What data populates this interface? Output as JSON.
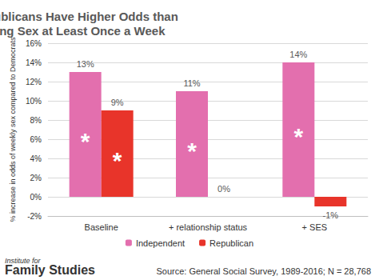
{
  "chart_data": {
    "type": "bar",
    "title": "Independents & Republicans Have Higher Odds than Democrats of Having Sex at Least Once a Week",
    "y_label": "% increase in odds of weekly sex compared to Democrats",
    "categories": [
      "Baseline",
      "+ relationship status",
      "+ SES"
    ],
    "series": [
      {
        "name": "Independent",
        "color": "#e36fae",
        "values": [
          13,
          11,
          14
        ],
        "value_labels": [
          "13%",
          "11%",
          "14%"
        ]
      },
      {
        "name": "Republican",
        "color": "#e8342a",
        "values": [
          9,
          0,
          -1
        ],
        "value_labels": [
          "9%",
          "0%",
          "-1%"
        ]
      }
    ],
    "ylim": [
      -2,
      16
    ],
    "yticks": [
      {
        "value": -2,
        "label": "-2%"
      },
      {
        "value": 0,
        "label": "0%"
      },
      {
        "value": 2,
        "label": "2%"
      },
      {
        "value": 4,
        "label": "4%"
      },
      {
        "value": 6,
        "label": "6%"
      },
      {
        "value": 8,
        "label": "8%"
      },
      {
        "value": 10,
        "label": "10%"
      },
      {
        "value": 12,
        "label": "12%"
      },
      {
        "value": 14,
        "label": "14%"
      },
      {
        "value": 16,
        "label": "16%"
      }
    ],
    "grid": true,
    "legend": "bottom",
    "data_labels": true,
    "annotations": [
      {
        "text": "*",
        "series": "Independent",
        "category": "Baseline"
      },
      {
        "text": "*",
        "series": "Republican",
        "category": "Baseline"
      },
      {
        "text": "*",
        "series": "Independent",
        "category": "+ relationship status"
      },
      {
        "text": "*",
        "series": "Independent",
        "category": "+ SES"
      }
    ],
    "source": "Source: General Social Survey, 1989-2016; N = 28,768",
    "logo": [
      "Institute for",
      "Family Studies"
    ]
  }
}
